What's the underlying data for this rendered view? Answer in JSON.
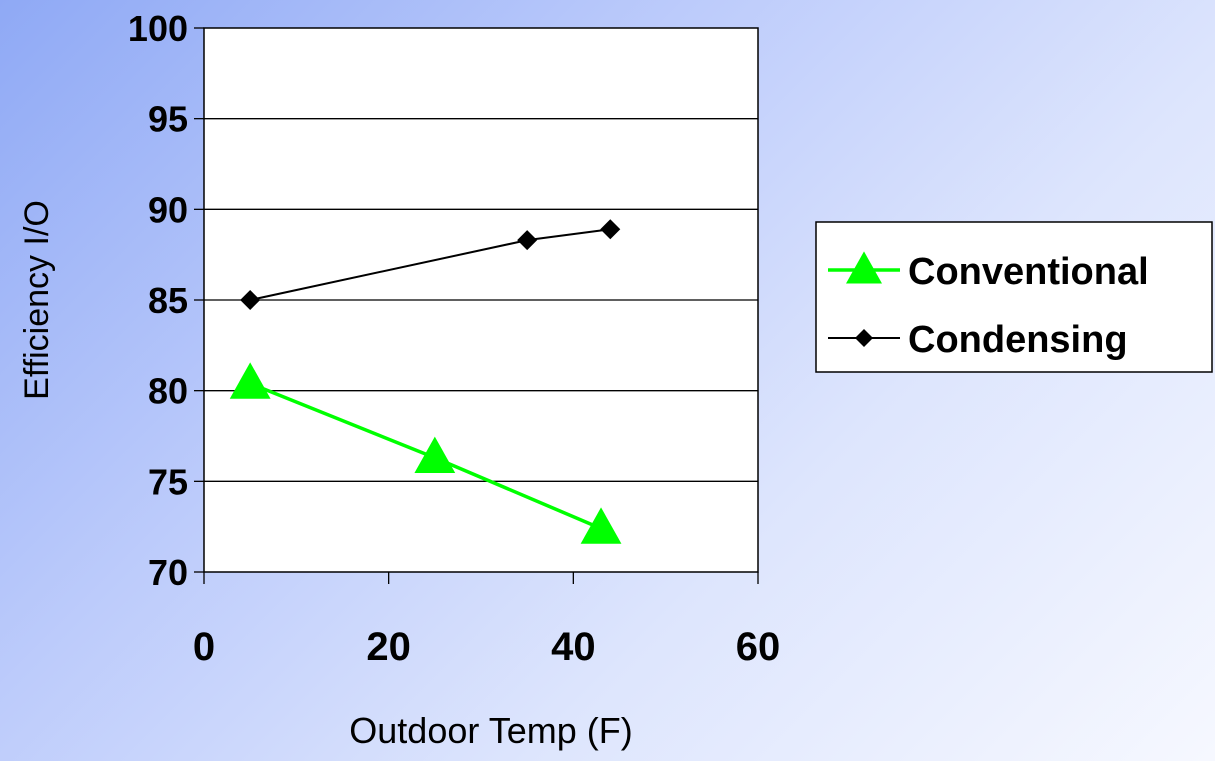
{
  "chart_data": {
    "type": "line",
    "title": "",
    "xlabel": "Outdoor Temp (F)",
    "ylabel": "Efficiency I/O",
    "xlim": [
      0,
      60
    ],
    "ylim": [
      70,
      100
    ],
    "xticks": [
      0,
      20,
      40,
      60
    ],
    "yticks": [
      70,
      75,
      80,
      85,
      90,
      95,
      100
    ],
    "grid": "horizontal",
    "legend_position": "right",
    "series": [
      {
        "name": "Conventional",
        "color": "#00ff00",
        "marker": "triangle",
        "x": [
          5,
          25,
          43
        ],
        "y": [
          80.4,
          76.3,
          72.4
        ]
      },
      {
        "name": "Condensing",
        "color": "#000000",
        "marker": "diamond",
        "x": [
          5,
          35,
          44
        ],
        "y": [
          85.0,
          88.3,
          88.9
        ]
      }
    ]
  }
}
